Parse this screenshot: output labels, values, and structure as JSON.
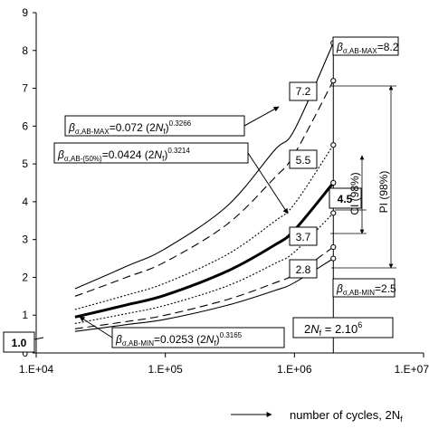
{
  "chart_data": {
    "type": "line",
    "xscale": "log",
    "xlim": [
      10000,
      10000000
    ],
    "ylim": [
      0,
      9
    ],
    "x_ticks": [
      "1.E+04",
      "1.E+05",
      "1.E+06",
      "1.E+07"
    ],
    "y_ticks": [
      0,
      1,
      2,
      3,
      4,
      5,
      6,
      7,
      8,
      9
    ],
    "xlabel_arrow": "→",
    "xlabel": "number of cycles, 2N",
    "grid": false,
    "series": [
      {
        "key": "ab_max",
        "style": "solid",
        "weight": "thin",
        "x": [
          20000,
          50000,
          100000,
          300000,
          700000,
          1000000,
          2000000
        ],
        "y": [
          1.7,
          2.29,
          2.76,
          3.88,
          5.36,
          5.9,
          8.2
        ]
      },
      {
        "key": "ab_upper",
        "style": "dashed",
        "weight": "thin",
        "x": [
          20000,
          50000,
          100000,
          300000,
          700000,
          1000000,
          2000000
        ],
        "y": [
          1.5,
          2.0,
          2.41,
          3.4,
          4.63,
          5.26,
          7.2
        ]
      },
      {
        "key": "ab_ci_upper",
        "style": "dotted",
        "weight": "thin",
        "x": [
          20000,
          50000,
          100000,
          300000,
          700000,
          1000000,
          2000000
        ],
        "y": [
          1.15,
          1.53,
          1.85,
          2.6,
          3.48,
          3.94,
          5.5
        ]
      },
      {
        "key": "ab_50",
        "style": "solid",
        "weight": "bold",
        "x": [
          20000,
          50000,
          100000,
          300000,
          700000,
          1000000,
          2000000
        ],
        "y": [
          0.95,
          1.27,
          1.53,
          2.16,
          2.85,
          3.25,
          4.5
        ]
      },
      {
        "key": "ab_ci_lower",
        "style": "dotted",
        "weight": "thin",
        "x": [
          20000,
          50000,
          100000,
          300000,
          700000,
          1000000,
          2000000
        ],
        "y": [
          0.78,
          1.04,
          1.26,
          1.77,
          2.36,
          2.67,
          3.7
        ]
      },
      {
        "key": "ab_lower",
        "style": "dashed",
        "weight": "thin",
        "x": [
          20000,
          50000,
          100000,
          300000,
          700000,
          1000000,
          2000000
        ],
        "y": [
          0.64,
          0.83,
          1.0,
          1.41,
          1.85,
          2.08,
          2.8
        ]
      },
      {
        "key": "ab_min",
        "style": "solid",
        "weight": "thin",
        "x": [
          20000,
          50000,
          100000,
          300000,
          700000,
          1000000,
          2000000
        ],
        "y": [
          0.57,
          0.75,
          0.89,
          1.26,
          1.65,
          1.86,
          2.5
        ]
      }
    ],
    "reference_line_x": 2000000,
    "end_labels": [
      {
        "text": "8.2",
        "value": 8.2
      },
      {
        "text": "7.2",
        "value": 7.2
      },
      {
        "text": "5.5",
        "value": 5.5
      },
      {
        "text": "4.5",
        "value": 4.5
      },
      {
        "text": "3.7",
        "value": 3.7
      },
      {
        "text": "2.8",
        "value": 2.8
      },
      {
        "text": "2.5",
        "value": 2.5
      }
    ],
    "start_label": {
      "text": "1.0",
      "value": 1.0
    },
    "annotations": {
      "ab_max_label": {
        "beta": "β",
        "sub": "σ,AB-MAX",
        "eq": "=8.2"
      },
      "ab_min_label": {
        "beta": "β",
        "sub": "σ,AB-MIN",
        "eq": "=2.5"
      },
      "eq_max": {
        "beta": "β",
        "sub": "σ,AB-MAX",
        "eq": "=0.072 (2",
        "n": "N",
        "f": "f",
        "close": ")",
        "exp": "0.3266"
      },
      "eq_50": {
        "beta": "β",
        "sub": "σ,AB-(50%)",
        "eq": "=0.0424 (2",
        "n": "N",
        "f": "f",
        "close": ")",
        "exp": "0.3214"
      },
      "eq_min": {
        "beta": "β",
        "sub": "σ,AB-MIN",
        "eq": "=0.0253 (2",
        "n": "N",
        "f": "f",
        "close": ")",
        "exp": "0.3165"
      },
      "nf_label": {
        "pre": "2",
        "n": "N",
        "f": "f",
        "eq": " = 2.10",
        "exp": "6"
      },
      "ci_label": "CI (98%)",
      "pi_label": "PI (98%)"
    }
  }
}
